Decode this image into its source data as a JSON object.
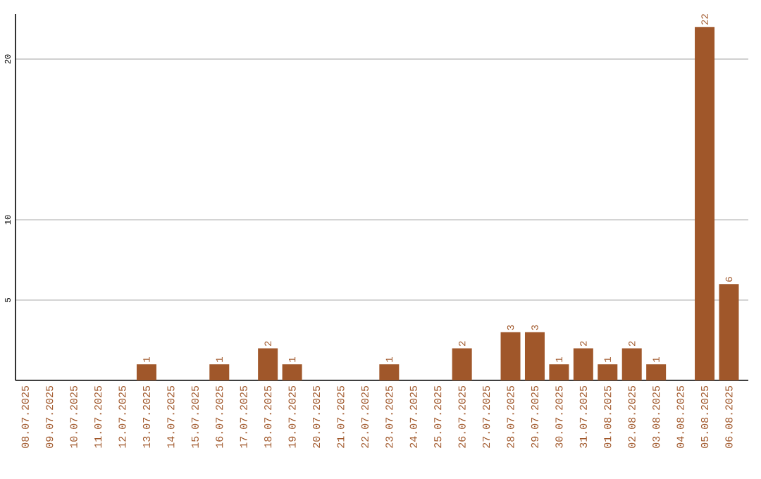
{
  "chart_data": {
    "type": "bar",
    "categories": [
      "08.07.2025",
      "09.07.2025",
      "10.07.2025",
      "11.07.2025",
      "12.07.2025",
      "13.07.2025",
      "14.07.2025",
      "15.07.2025",
      "16.07.2025",
      "17.07.2025",
      "18.07.2025",
      "19.07.2025",
      "20.07.2025",
      "21.07.2025",
      "22.07.2025",
      "23.07.2025",
      "24.07.2025",
      "25.07.2025",
      "26.07.2025",
      "27.07.2025",
      "28.07.2025",
      "29.07.2025",
      "30.07.2025",
      "31.07.2025",
      "01.08.2025",
      "02.08.2025",
      "03.08.2025",
      "04.08.2025",
      "05.08.2025",
      "06.08.2025"
    ],
    "values": [
      0,
      0,
      0,
      0,
      0,
      1,
      0,
      0,
      1,
      0,
      2,
      1,
      0,
      0,
      0,
      1,
      0,
      0,
      2,
      0,
      3,
      3,
      1,
      2,
      1,
      2,
      1,
      0,
      22,
      6
    ],
    "value_labels": [
      null,
      null,
      null,
      null,
      null,
      "1",
      null,
      null,
      "1",
      null,
      "2",
      "1",
      null,
      null,
      null,
      "1",
      null,
      null,
      "2",
      null,
      "3",
      "3",
      "1",
      "2",
      "1",
      "2",
      "1",
      null,
      "22",
      "6"
    ],
    "color": "#a0572a",
    "ylim": [
      0,
      22.8
    ],
    "yticks": [
      5,
      10,
      20
    ],
    "grid": "y"
  }
}
